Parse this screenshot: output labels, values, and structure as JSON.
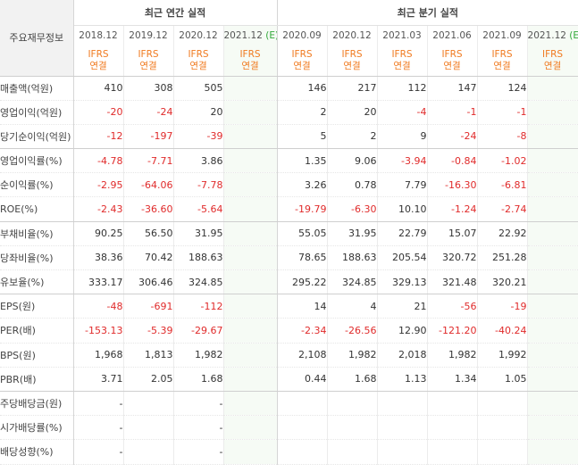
{
  "table": {
    "label_header": "주요재무정보",
    "groups": {
      "annual": "최근 연간 실적",
      "quarterly": "최근 분기 실적"
    },
    "periods": [
      "2018.12",
      "2019.12",
      "2020.12",
      "2021.12",
      "2020.09",
      "2020.12",
      "2021.03",
      "2021.06",
      "2021.09",
      "2021.12"
    ],
    "estimate_mark": "(E)",
    "ifrs_label": "IFRS",
    "basis_label": "연결",
    "rows": [
      {
        "label": "매출액(억원)",
        "values": [
          "410",
          "308",
          "505",
          "",
          "146",
          "217",
          "112",
          "147",
          "124",
          ""
        ]
      },
      {
        "label": "영업이익(억원)",
        "values": [
          "-20",
          "-24",
          "20",
          "",
          "2",
          "20",
          "-4",
          "-1",
          "-1",
          ""
        ]
      },
      {
        "label": "당기순이익(억원)",
        "values": [
          "-12",
          "-197",
          "-39",
          "",
          "5",
          "2",
          "9",
          "-24",
          "-8",
          ""
        ]
      },
      {
        "label": "영업이익률(%)",
        "values": [
          "-4.78",
          "-7.71",
          "3.86",
          "",
          "1.35",
          "9.06",
          "-3.94",
          "-0.84",
          "-1.02",
          ""
        ]
      },
      {
        "label": "순이익률(%)",
        "values": [
          "-2.95",
          "-64.06",
          "-7.78",
          "",
          "3.26",
          "0.78",
          "7.79",
          "-16.30",
          "-6.81",
          ""
        ]
      },
      {
        "label": "ROE(%)",
        "values": [
          "-2.43",
          "-36.60",
          "-5.64",
          "",
          "-19.79",
          "-6.30",
          "10.10",
          "-1.24",
          "-2.74",
          ""
        ]
      },
      {
        "label": "부채비율(%)",
        "values": [
          "90.25",
          "56.50",
          "31.95",
          "",
          "55.05",
          "31.95",
          "22.79",
          "15.07",
          "22.92",
          ""
        ]
      },
      {
        "label": "당좌비율(%)",
        "values": [
          "38.36",
          "70.42",
          "188.63",
          "",
          "78.65",
          "188.63",
          "205.54",
          "320.72",
          "251.28",
          ""
        ]
      },
      {
        "label": "유보율(%)",
        "values": [
          "333.17",
          "306.46",
          "324.85",
          "",
          "295.22",
          "324.85",
          "329.13",
          "321.48",
          "320.21",
          ""
        ]
      },
      {
        "label": "EPS(원)",
        "values": [
          "-48",
          "-691",
          "-112",
          "",
          "14",
          "4",
          "21",
          "-56",
          "-19",
          ""
        ]
      },
      {
        "label": "PER(배)",
        "values": [
          "-153.13",
          "-5.39",
          "-29.67",
          "",
          "-2.34",
          "-26.56",
          "12.90",
          "-121.20",
          "-40.24",
          ""
        ]
      },
      {
        "label": "BPS(원)",
        "values": [
          "1,968",
          "1,813",
          "1,982",
          "",
          "2,108",
          "1,982",
          "2,018",
          "1,982",
          "1,992",
          ""
        ]
      },
      {
        "label": "PBR(배)",
        "values": [
          "3.71",
          "2.05",
          "1.68",
          "",
          "0.44",
          "1.68",
          "1.13",
          "1.34",
          "1.05",
          ""
        ]
      },
      {
        "label": "주당배당금(원)",
        "values": [
          "-",
          "",
          "-",
          "",
          "",
          "",
          "",
          "",
          "",
          ""
        ]
      },
      {
        "label": "시가배당률(%)",
        "values": [
          "-",
          "",
          "-",
          "",
          "",
          "",
          "",
          "",
          "",
          ""
        ]
      },
      {
        "label": "배당성향(%)",
        "values": [
          "-",
          "",
          "-",
          "",
          "",
          "",
          "",
          "",
          "",
          ""
        ]
      }
    ],
    "colors": {
      "negative": "#e02b2b",
      "ifrs": "#f07a1f",
      "estimate": "#31a839",
      "estimate_bg": "#f6fbf5"
    }
  }
}
